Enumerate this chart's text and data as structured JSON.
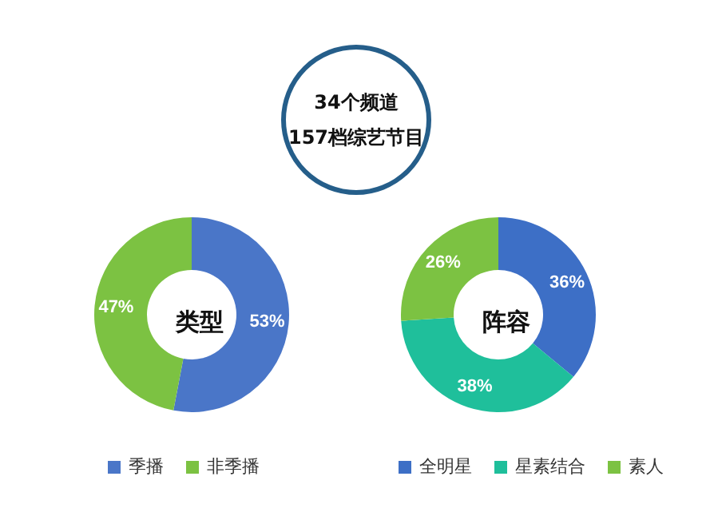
{
  "chart_data": [
    {
      "type": "other",
      "annotations": [
        "34个频道",
        "157档综艺节目"
      ]
    },
    {
      "type": "donut",
      "title": "类型",
      "categories": [
        "季播",
        "非季播"
      ],
      "values": [
        53,
        47
      ],
      "colors": [
        "#4a76c8",
        "#7cc242"
      ],
      "value_labels": [
        "53%",
        "47%"
      ],
      "legend": "bottom"
    },
    {
      "type": "donut",
      "title": "阵容",
      "categories": [
        "全明星",
        "星素结合",
        "素人"
      ],
      "values": [
        36,
        38,
        26
      ],
      "colors": [
        "#3d6fc6",
        "#1fbf9b",
        "#7cc242"
      ],
      "value_labels": [
        "36%",
        "38%",
        "26%"
      ],
      "legend": "bottom"
    }
  ]
}
